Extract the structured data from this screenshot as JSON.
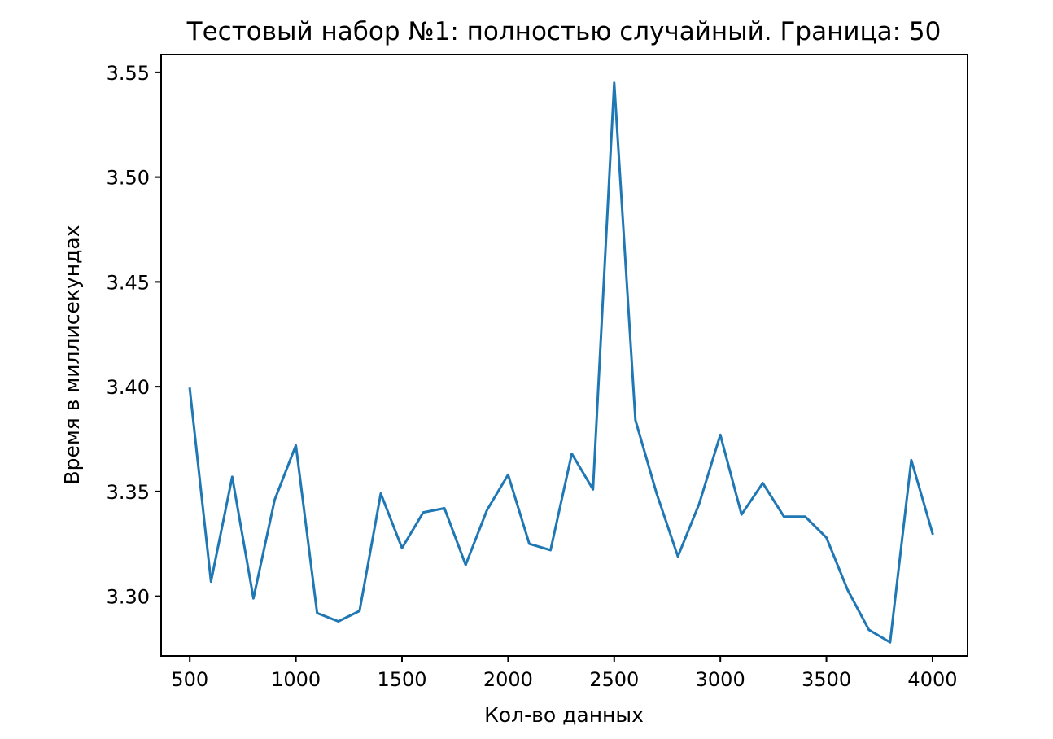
{
  "chart_data": {
    "type": "line",
    "title": "Тестовый набор №1: полностью случайный. Граница: 50",
    "xlabel": "Кол-во данных",
    "ylabel": "Время в миллисекундах",
    "xlim": [
      365,
      4165
    ],
    "ylim": [
      3.2715,
      3.5585
    ],
    "xticks": [
      500,
      1000,
      1500,
      2000,
      2500,
      3000,
      3500,
      4000
    ],
    "xtick_labels": [
      "500",
      "1000",
      "1500",
      "2000",
      "2500",
      "3000",
      "3500",
      "4000"
    ],
    "yticks": [
      3.3,
      3.35,
      3.4,
      3.45,
      3.5,
      3.55
    ],
    "ytick_labels": [
      "3.30",
      "3.35",
      "3.40",
      "3.45",
      "3.50",
      "3.55"
    ],
    "grid": false,
    "series": [
      {
        "color": "#1f77b4",
        "x": [
          500,
          600,
          700,
          800,
          900,
          1000,
          1100,
          1200,
          1300,
          1400,
          1500,
          1600,
          1700,
          1800,
          1900,
          2000,
          2100,
          2200,
          2300,
          2400,
          2500,
          2600,
          2700,
          2800,
          2900,
          3000,
          3100,
          3200,
          3300,
          3400,
          3500,
          3600,
          3700,
          3800,
          3900,
          4000
        ],
        "values": [
          3.399,
          3.307,
          3.357,
          3.299,
          3.346,
          3.372,
          3.292,
          3.288,
          3.293,
          3.349,
          3.323,
          3.34,
          3.342,
          3.315,
          3.341,
          3.358,
          3.325,
          3.322,
          3.368,
          3.351,
          3.545,
          3.384,
          3.349,
          3.319,
          3.344,
          3.377,
          3.339,
          3.354,
          3.338,
          3.338,
          3.328,
          3.303,
          3.284,
          3.278,
          3.365,
          3.33
        ]
      }
    ]
  }
}
